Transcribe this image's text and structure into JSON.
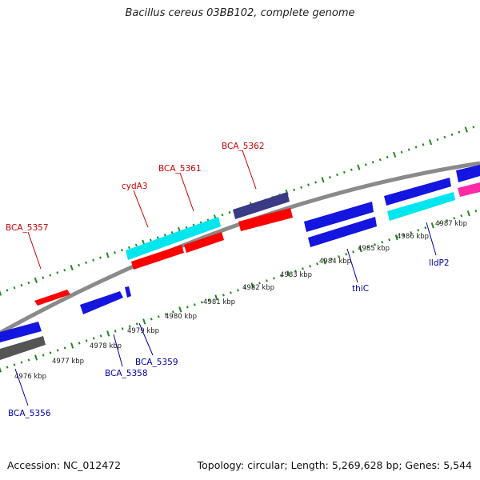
{
  "title": "Bacillus cereus 03BB102, complete genome",
  "footer": {
    "accession": "Accession: NC_012472",
    "summary": "Topology: circular; Length: 5,269,628 bp; Genes: 5,544"
  },
  "colors": {
    "backbone": "#8a8a8a",
    "ticks": "#1e8a1e",
    "red": "#ff0000",
    "blue": "#1515e0",
    "cyan": "#00e6ee",
    "slate": "#3b3a85",
    "gray": "#555555",
    "magenta": "#ff2aa6",
    "label_red": "#cc0000",
    "label_blue": "#0000aa"
  },
  "scale": {
    "labels": [
      "4976 kbp",
      "4977 kbp",
      "4978 kbp",
      "4979 kbp",
      "4980 kbp",
      "4981 kbp",
      "4982 kbp",
      "4983 kbp",
      "4984 kbp",
      "4985 kbp",
      "4986 kbp",
      "4987 kbp"
    ]
  },
  "gene_labels": {
    "top": [
      "BCA_5357",
      "cydA3",
      "BCA_5361",
      "BCA_5362"
    ],
    "bottom": [
      "BCA_5356",
      "BCA_5358",
      "BCA_5359",
      "thiC",
      "lldP2"
    ]
  }
}
